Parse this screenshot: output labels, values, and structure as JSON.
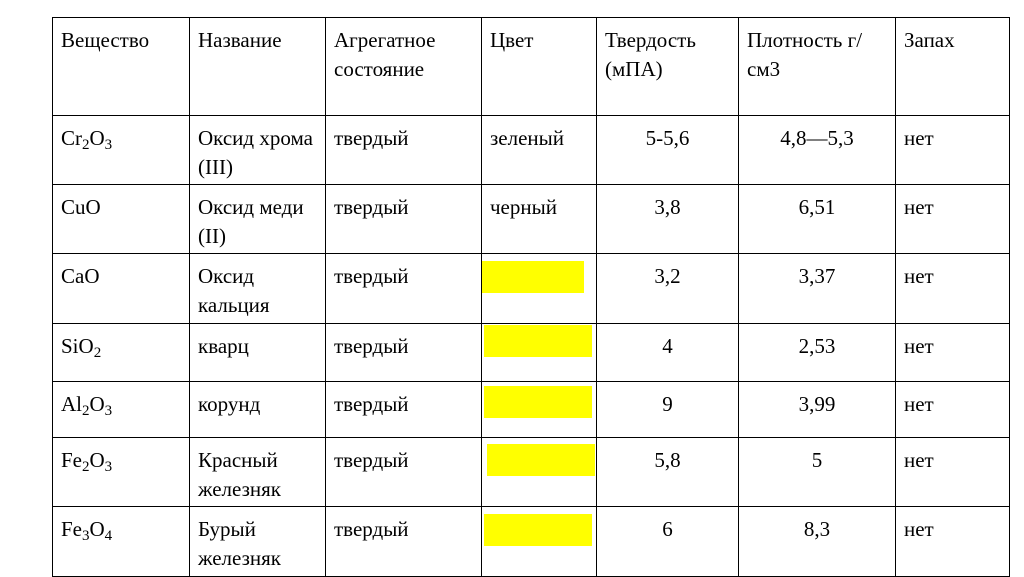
{
  "header": {
    "substance": "Вещество",
    "name": "Название",
    "state": "Агрегатное состояние",
    "color": "Цвет",
    "hardness": "Твердость (мПА)",
    "density": "Плотность г/см3",
    "smell": "Запах"
  },
  "rows": [
    {
      "formula": [
        {
          "t": "Cr"
        },
        {
          "s": "2"
        },
        {
          "t": "O"
        },
        {
          "s": "3"
        }
      ],
      "name": "Оксид хрома (III)",
      "state": "твердый",
      "color": "зеленый",
      "hardness": "5-5,6",
      "density": "4,8—5,3",
      "smell": "нет"
    },
    {
      "formula": [
        {
          "t": "CuO"
        }
      ],
      "name": "Оксид меди (II)",
      "state": "твердый",
      "color": "черный",
      "hardness": "3,8",
      "density": "6,51",
      "smell": "нет"
    },
    {
      "formula": [
        {
          "t": "CaO"
        }
      ],
      "name": "Оксид кальция",
      "state": "твердый",
      "color": "",
      "hardness": "3,2",
      "density": "3,37",
      "smell": "нет"
    },
    {
      "formula": [
        {
          "t": "SiO"
        },
        {
          "s": "2"
        }
      ],
      "name": "кварц",
      "state": "твердый",
      "color": "",
      "hardness": "4",
      "density": "2,53",
      "smell": "нет"
    },
    {
      "formula": [
        {
          "t": "Al"
        },
        {
          "s": "2"
        },
        {
          "t": "O"
        },
        {
          "s": "3"
        }
      ],
      "name": "корунд",
      "state": "твердый",
      "color": "",
      "hardness": "9",
      "density": "3,99",
      "smell": "нет"
    },
    {
      "formula": [
        {
          "t": "Fe"
        },
        {
          "s": "2"
        },
        {
          "t": "O"
        },
        {
          "s": "3"
        }
      ],
      "name": "Красный железняк",
      "state": "твердый",
      "color": "",
      "hardness": "5,8",
      "density": "5",
      "smell": "нет"
    },
    {
      "formula": [
        {
          "t": "Fe"
        },
        {
          "s": "3"
        },
        {
          "t": "O"
        },
        {
          "s": "4"
        }
      ],
      "name": "Бурый железняк",
      "state": "твердый",
      "color": "",
      "hardness": "6",
      "density": "8,3",
      "smell": "нет"
    }
  ],
  "highlight_color": "#ffff00"
}
